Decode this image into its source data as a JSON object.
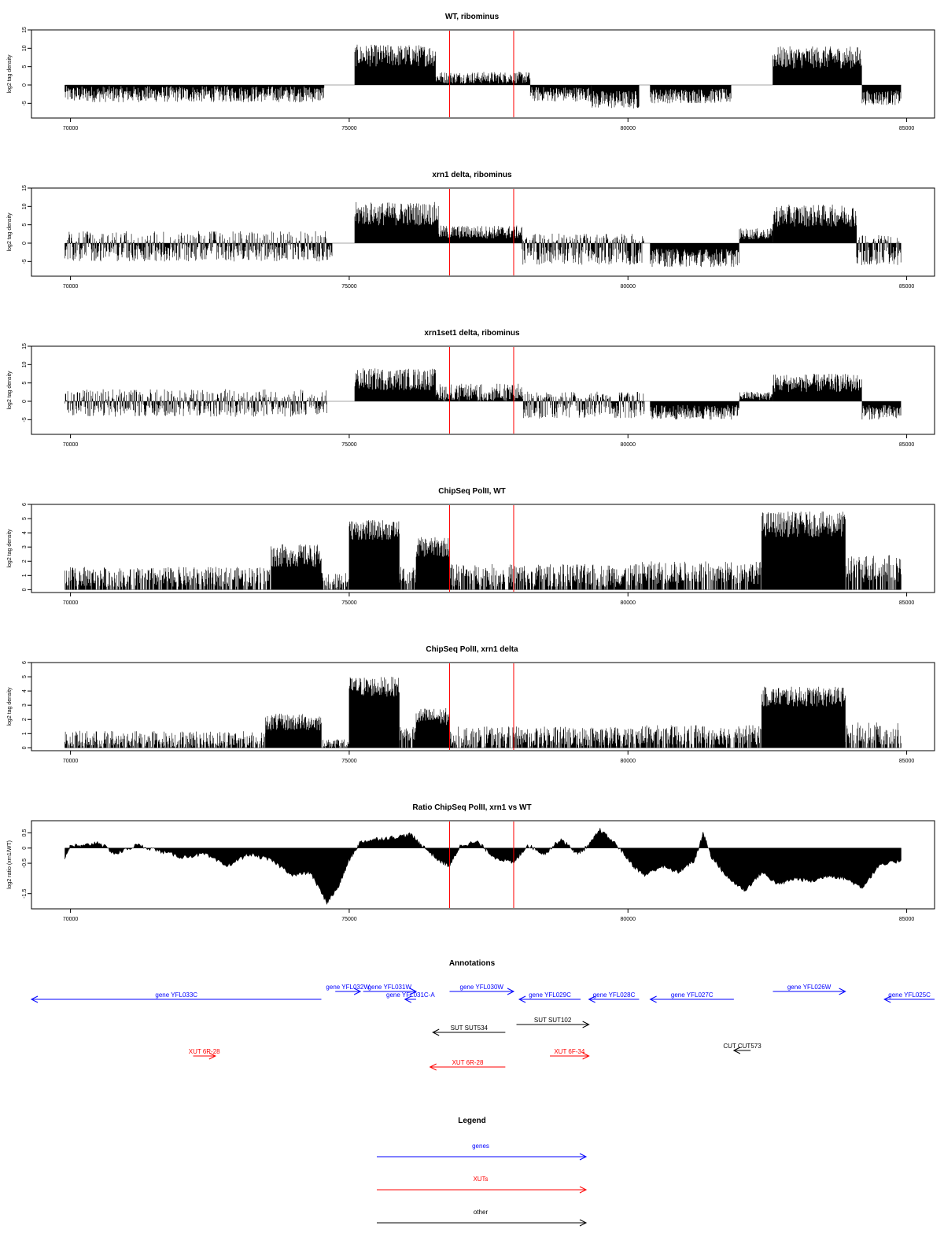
{
  "colors": {
    "gene": "#0000ff",
    "xut": "#ff0000",
    "other": "#000000",
    "marker": "#ff0000",
    "fill": "#000000"
  },
  "chart_data": [
    {
      "type": "bar",
      "title": "WT, ribominus",
      "ylabel": "log2 tag density",
      "ylim": [
        -9,
        15
      ],
      "yticks": [
        -5,
        0,
        5,
        10,
        15
      ],
      "xlim": [
        69300,
        85500
      ],
      "xticks": [
        70000,
        75000,
        80000,
        85000
      ],
      "markers": [
        76800,
        77950
      ],
      "style": "spiky",
      "segments": [
        {
          "x": [
            69900,
            74550
          ],
          "level": -2.5,
          "amp": 2.2
        },
        {
          "x": [
            75100,
            76550
          ],
          "level": 8.0,
          "amp": 3.0
        },
        {
          "x": [
            76550,
            78250
          ],
          "level": 2.0,
          "amp": 1.6
        },
        {
          "x": [
            78250,
            79350
          ],
          "level": -2.5,
          "amp": 2.0
        },
        {
          "x": [
            79350,
            80200
          ],
          "level": -4.0,
          "amp": 2.5
        },
        {
          "x": [
            80400,
            81850
          ],
          "level": -3.0,
          "amp": 2.0
        },
        {
          "x": [
            82600,
            84200
          ],
          "level": 7.5,
          "amp": 3.0
        },
        {
          "x": [
            84200,
            84900
          ],
          "level": -3.5,
          "amp": 2.0
        }
      ]
    },
    {
      "type": "bar",
      "title": "xrn1 delta, ribominus",
      "ylabel": "log2 tag density",
      "ylim": [
        -9,
        15
      ],
      "yticks": [
        -5,
        0,
        5,
        10,
        15
      ],
      "xlim": [
        69300,
        85500
      ],
      "xticks": [
        70000,
        75000,
        80000,
        85000
      ],
      "markers": [
        76800,
        77950
      ],
      "style": "spiky",
      "segments": [
        {
          "x": [
            69900,
            74700
          ],
          "level": -2.5,
          "amp": 2.5,
          "pos": 1.5
        },
        {
          "x": [
            75100,
            76600
          ],
          "level": 8.0,
          "amp": 3.2
        },
        {
          "x": [
            76600,
            78100
          ],
          "level": 3.0,
          "amp": 1.8
        },
        {
          "x": [
            78100,
            80300
          ],
          "level": -3.5,
          "amp": 2.5,
          "pos": 1.2
        },
        {
          "x": [
            80400,
            82000
          ],
          "level": -4.0,
          "amp": 2.5
        },
        {
          "x": [
            82000,
            82600
          ],
          "level": 2.5,
          "amp": 1.5
        },
        {
          "x": [
            82600,
            84100
          ],
          "level": 7.5,
          "amp": 3.0
        },
        {
          "x": [
            84100,
            84900
          ],
          "level": -3.5,
          "amp": 2.5,
          "pos": 1.0
        }
      ]
    },
    {
      "type": "bar",
      "title": "xrn1set1 delta, ribominus",
      "ylabel": "log2 tag density",
      "ylim": [
        -9,
        15
      ],
      "yticks": [
        -5,
        0,
        5,
        10,
        15
      ],
      "xlim": [
        69300,
        85500
      ],
      "xticks": [
        70000,
        75000,
        80000,
        85000
      ],
      "markers": [
        76800,
        77950
      ],
      "style": "spiky",
      "segments": [
        {
          "x": [
            69900,
            74600
          ],
          "level": -2.0,
          "amp": 2.2,
          "pos": 1.5
        },
        {
          "x": [
            75100,
            76550
          ],
          "level": 6.0,
          "amp": 3.0
        },
        {
          "x": [
            76550,
            78100
          ],
          "level": 3.0,
          "amp": 1.8,
          "pos": 0.5
        },
        {
          "x": [
            78100,
            80300
          ],
          "level": -2.5,
          "amp": 2.2,
          "pos": 1.2
        },
        {
          "x": [
            80400,
            82000
          ],
          "level": -3.0,
          "amp": 2.0
        },
        {
          "x": [
            82000,
            82600
          ],
          "level": 1.5,
          "amp": 1.2
        },
        {
          "x": [
            82600,
            84200
          ],
          "level": 5.0,
          "amp": 2.5
        },
        {
          "x": [
            84200,
            84900
          ],
          "level": -3.0,
          "amp": 2.0
        }
      ]
    },
    {
      "type": "bar",
      "title": "ChipSeq PolII, WT",
      "ylabel": "log2 tag density",
      "ylim": [
        -0.2,
        6
      ],
      "yticks": [
        0,
        1,
        2,
        3,
        4,
        5,
        6
      ],
      "xlim": [
        69300,
        85500
      ],
      "xticks": [
        70000,
        75000,
        80000,
        85000
      ],
      "markers": [
        76800,
        77950
      ],
      "style": "chip",
      "segments": [
        {
          "x": [
            69900,
            73600
          ],
          "level": 0.9,
          "amp": 0.7
        },
        {
          "x": [
            73600,
            74500
          ],
          "level": 2.4,
          "amp": 0.8
        },
        {
          "x": [
            74500,
            75000
          ],
          "level": 0.6,
          "amp": 0.6
        },
        {
          "x": [
            75000,
            75900
          ],
          "level": 4.2,
          "amp": 0.7
        },
        {
          "x": [
            75900,
            76200
          ],
          "level": 1.0,
          "amp": 0.6
        },
        {
          "x": [
            76200,
            76800
          ],
          "level": 3.0,
          "amp": 0.7
        },
        {
          "x": [
            76800,
            80200
          ],
          "level": 1.0,
          "amp": 0.8
        },
        {
          "x": [
            80200,
            82400
          ],
          "level": 1.2,
          "amp": 0.8
        },
        {
          "x": [
            82400,
            83900
          ],
          "level": 4.6,
          "amp": 0.9
        },
        {
          "x": [
            83900,
            84900
          ],
          "level": 1.5,
          "amp": 1.0
        }
      ]
    },
    {
      "type": "bar",
      "title": "ChipSeq PolII, xrn1 delta",
      "ylabel": "log2 tag density",
      "ylim": [
        -0.2,
        6
      ],
      "yticks": [
        0,
        1,
        2,
        3,
        4,
        5,
        6
      ],
      "xlim": [
        69300,
        85500
      ],
      "xticks": [
        70000,
        75000,
        80000,
        85000
      ],
      "markers": [
        76800,
        77950
      ],
      "style": "chip",
      "segments": [
        {
          "x": [
            69900,
            73500
          ],
          "level": 0.6,
          "amp": 0.6
        },
        {
          "x": [
            73500,
            74500
          ],
          "level": 1.8,
          "amp": 0.6
        },
        {
          "x": [
            74500,
            75000
          ],
          "level": 0.3,
          "amp": 0.3
        },
        {
          "x": [
            75000,
            75900
          ],
          "level": 4.3,
          "amp": 0.7
        },
        {
          "x": [
            75900,
            76200
          ],
          "level": 1.0,
          "amp": 0.5
        },
        {
          "x": [
            76200,
            76800
          ],
          "level": 2.2,
          "amp": 0.6
        },
        {
          "x": [
            76800,
            80200
          ],
          "level": 0.8,
          "amp": 0.7
        },
        {
          "x": [
            80200,
            82400
          ],
          "level": 0.9,
          "amp": 0.7
        },
        {
          "x": [
            82400,
            83900
          ],
          "level": 3.6,
          "amp": 0.7
        },
        {
          "x": [
            83900,
            84900
          ],
          "level": 1.0,
          "amp": 0.8
        }
      ]
    },
    {
      "type": "area",
      "title": "Ratio ChipSeq PolII, xrn1 vs WT",
      "ylabel": "log2 ratio (xrn1/WT)",
      "ylim": [
        -2.0,
        0.9
      ],
      "yticks": [
        -1.5,
        -0.5,
        0.0,
        0.5
      ],
      "xlim": [
        69300,
        85500
      ],
      "xticks": [
        70000,
        75000,
        80000,
        85000
      ],
      "markers": [
        76800,
        77950
      ],
      "style": "ratio",
      "x": [
        69900,
        70000,
        70200,
        70500,
        70800,
        71200,
        71600,
        72000,
        72400,
        72800,
        73200,
        73600,
        74000,
        74300,
        74600,
        74800,
        75000,
        75200,
        75500,
        75800,
        76100,
        76300,
        76600,
        76800,
        77000,
        77300,
        77600,
        77950,
        78200,
        78500,
        78800,
        79100,
        79300,
        79500,
        79800,
        80100,
        80300,
        80600,
        80900,
        81200,
        81350,
        81500,
        81800,
        82100,
        82400,
        82700,
        83000,
        83300,
        83600,
        83900,
        84200,
        84500,
        84900
      ],
      "y": [
        -0.3,
        0.1,
        0.05,
        0.2,
        -0.2,
        0.1,
        -0.1,
        -0.3,
        -0.2,
        -0.6,
        -0.2,
        -0.4,
        -0.9,
        -0.8,
        -1.8,
        -1.3,
        -0.4,
        0.2,
        0.3,
        0.35,
        0.45,
        0.1,
        -0.4,
        -0.6,
        0.1,
        0.2,
        -0.3,
        -0.5,
        0.1,
        -0.2,
        0.3,
        -0.2,
        0.1,
        0.6,
        0.1,
        -0.6,
        -0.9,
        -0.6,
        -0.8,
        -0.4,
        0.5,
        -0.3,
        -1.0,
        -1.4,
        -0.8,
        -1.2,
        -1.0,
        -1.1,
        -0.9,
        -1.0,
        -1.3,
        -0.6,
        -0.4
      ]
    }
  ],
  "annotations": {
    "title": "Annotations",
    "xlim": [
      69300,
      85500
    ],
    "items": [
      {
        "label": "gene YFL033C",
        "kind": "gene",
        "start": 69300,
        "end": 74500,
        "dir": "left",
        "row": 2
      },
      {
        "label": "gene YFL032W",
        "kind": "gene",
        "start": 74750,
        "end": 75200,
        "dir": "right",
        "row": 1
      },
      {
        "label": "gene YFL031W",
        "kind": "gene",
        "start": 75250,
        "end": 76200,
        "dir": "right",
        "row": 1
      },
      {
        "label": "gene YFL031C-A",
        "kind": "gene",
        "start": 76000,
        "end": 76200,
        "dir": "left",
        "row": 2
      },
      {
        "label": "gene YFL030W",
        "kind": "gene",
        "start": 76800,
        "end": 77950,
        "dir": "right",
        "row": 1
      },
      {
        "label": "gene YFL029C",
        "kind": "gene",
        "start": 78050,
        "end": 79150,
        "dir": "left",
        "row": 2
      },
      {
        "label": "gene YFL028C",
        "kind": "gene",
        "start": 79300,
        "end": 80200,
        "dir": "left",
        "row": 2
      },
      {
        "label": "gene YFL027C",
        "kind": "gene",
        "start": 80400,
        "end": 81900,
        "dir": "left",
        "row": 2
      },
      {
        "label": "gene YFL026W",
        "kind": "gene",
        "start": 82600,
        "end": 83900,
        "dir": "right",
        "row": 1
      },
      {
        "label": "gene YFL025C",
        "kind": "gene",
        "start": 84600,
        "end": 85500,
        "dir": "left",
        "row": 2
      },
      {
        "label": "SUT SUT102",
        "kind": "other",
        "start": 78000,
        "end": 79300,
        "dir": "right",
        "row": 3
      },
      {
        "label": "SUT SUT534",
        "kind": "other",
        "start": 76500,
        "end": 77800,
        "dir": "left",
        "row": 4
      },
      {
        "label": "CUT CUT573",
        "kind": "other",
        "start": 81900,
        "end": 82200,
        "dir": "left",
        "row": 5
      },
      {
        "label": "XUT 6R-28",
        "kind": "xut",
        "start": 72200,
        "end": 72600,
        "dir": "right",
        "row": 6
      },
      {
        "label": "XUT 6F-34",
        "kind": "xut",
        "start": 78600,
        "end": 79300,
        "dir": "right",
        "row": 6
      },
      {
        "label": "XUT 6R-28",
        "kind": "xut",
        "start": 76450,
        "end": 77800,
        "dir": "left",
        "row": 7
      }
    ]
  },
  "legend": {
    "title": "Legend",
    "items": [
      {
        "label": "genes",
        "kind": "gene"
      },
      {
        "label": "XUTs",
        "kind": "xut"
      },
      {
        "label": "other",
        "kind": "other"
      }
    ]
  }
}
